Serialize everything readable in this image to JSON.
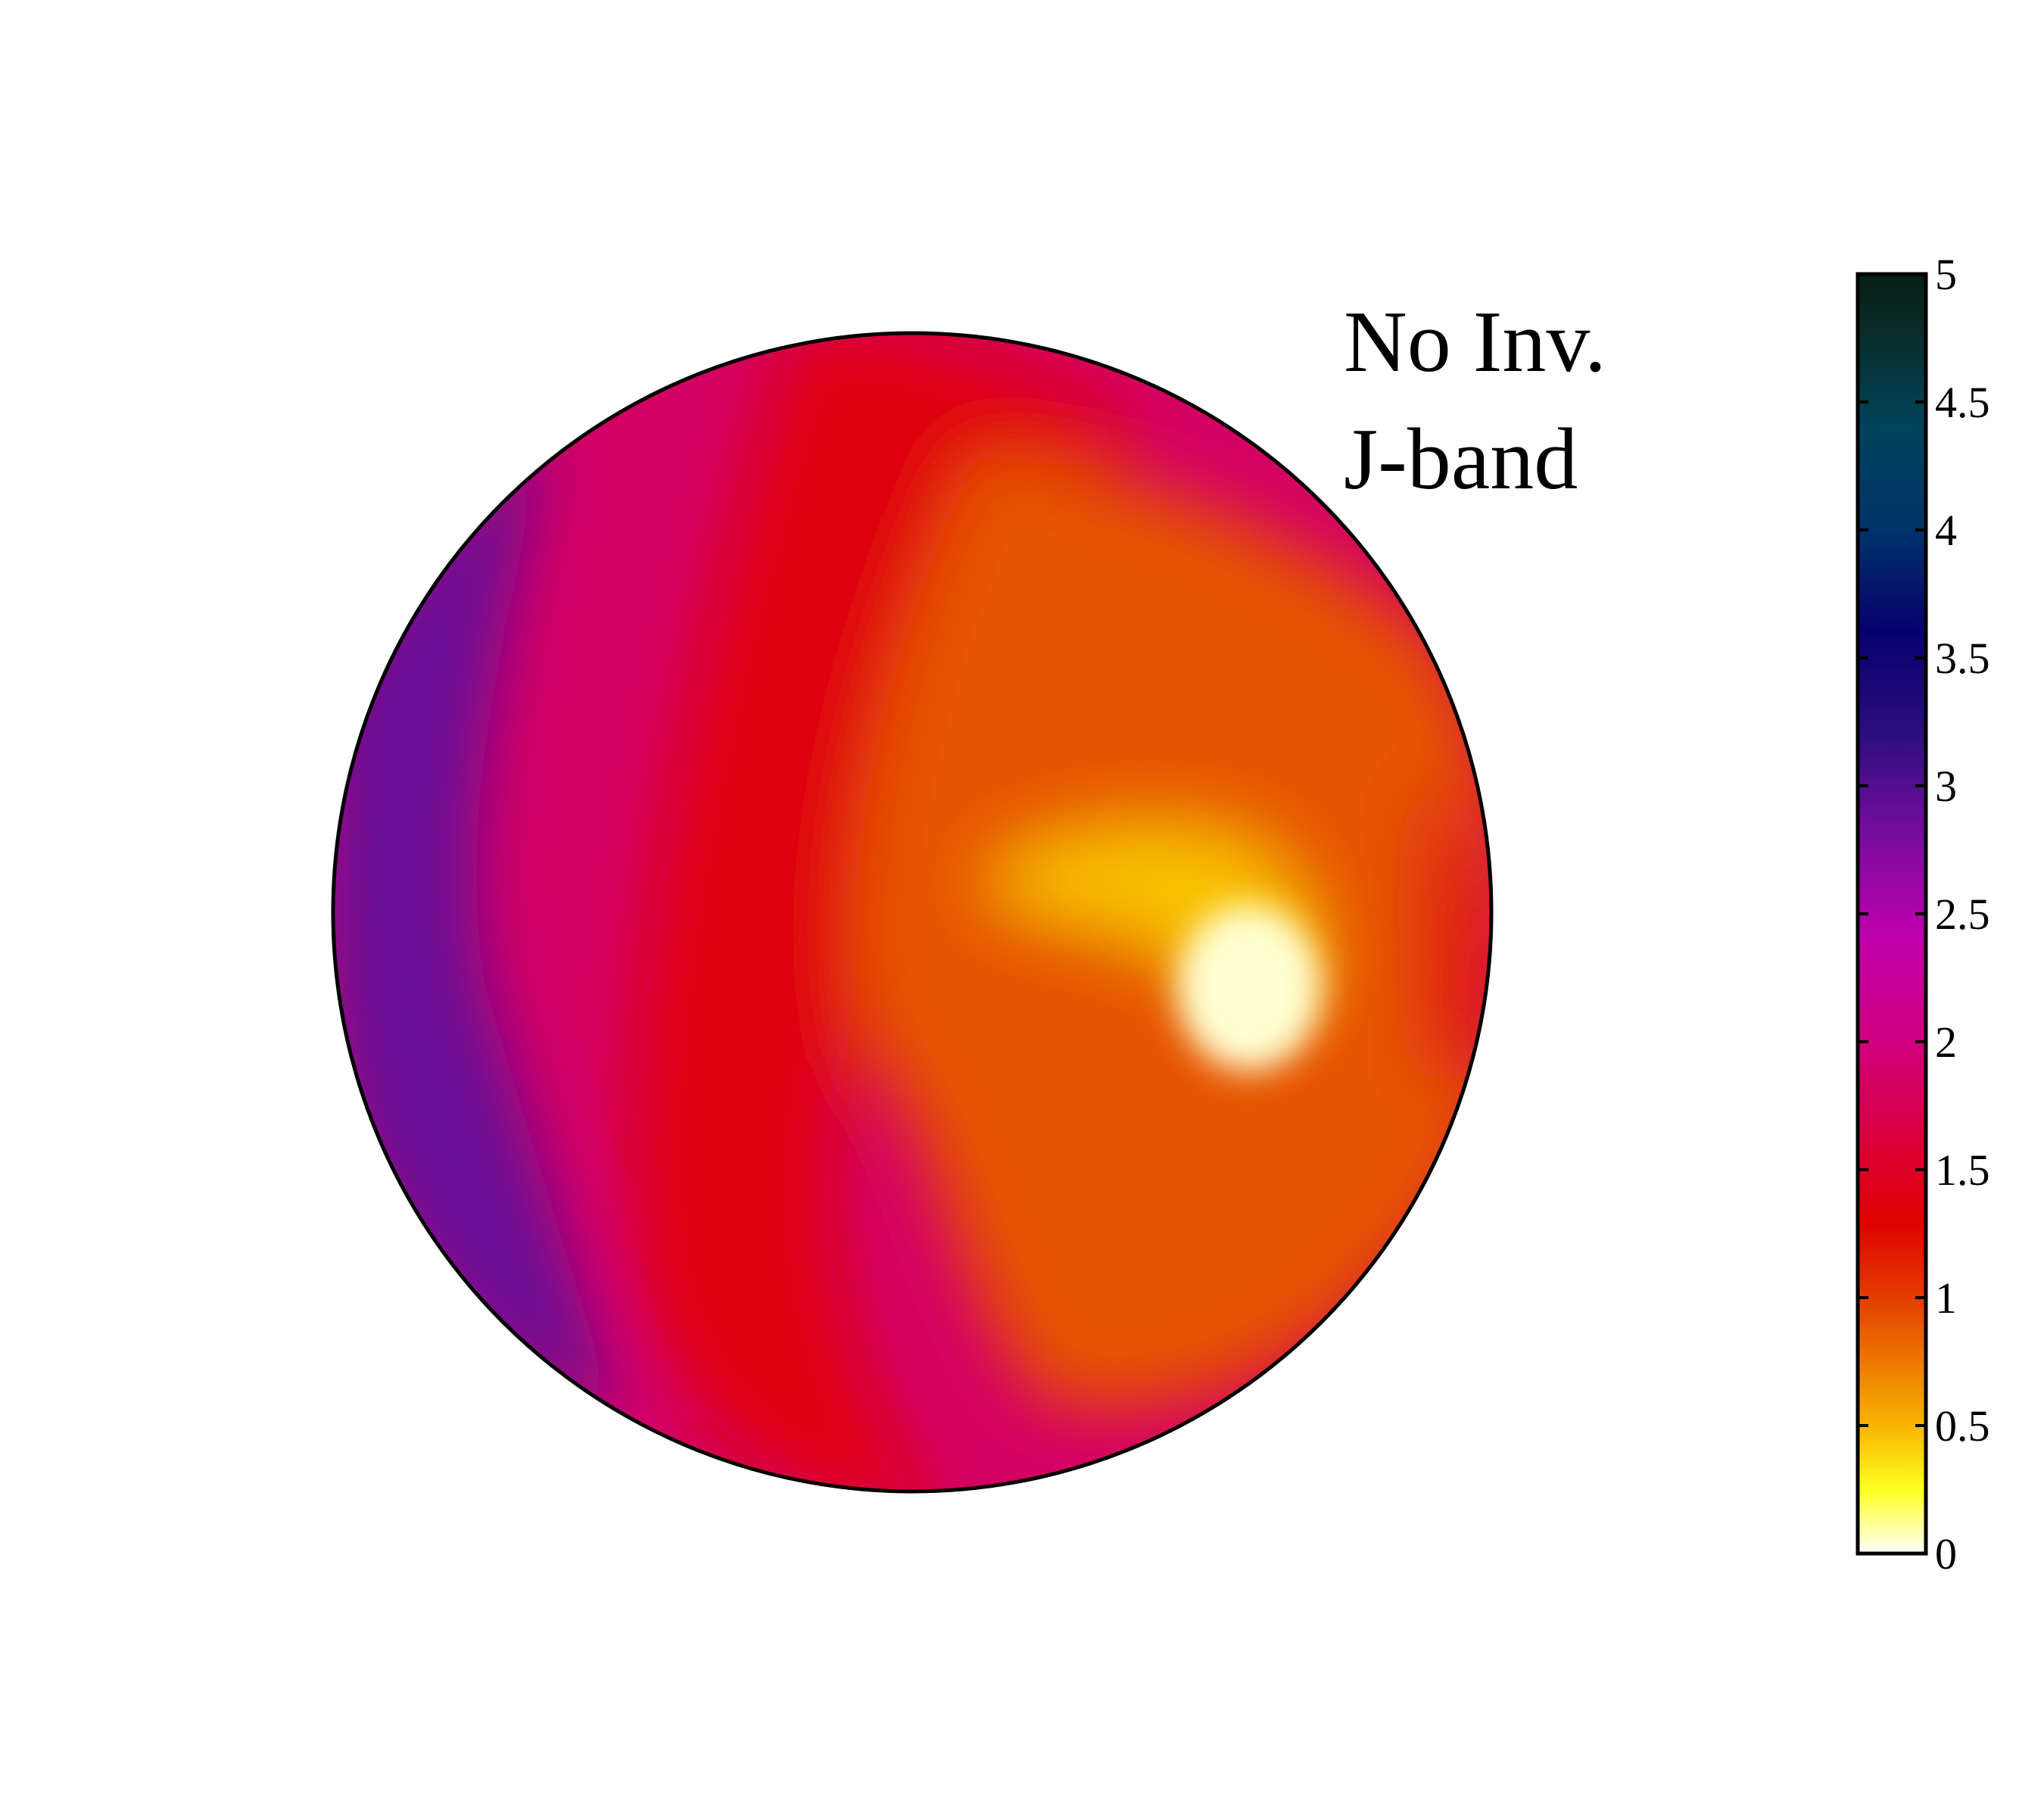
{
  "chart_data": {
    "type": "heatmap",
    "projection": "orthographic disk map",
    "annotation": {
      "line1": "No Inv.",
      "line2": "J-band"
    },
    "colorbar": {
      "min": 0,
      "max": 5,
      "ticks": [
        0,
        0.5,
        1,
        1.5,
        2,
        2.5,
        3,
        3.5,
        4,
        4.5,
        5
      ],
      "tick_labels": [
        "0",
        "0.5",
        "1",
        "1.5",
        "2",
        "2.5",
        "3",
        "3.5",
        "4",
        "4.5",
        "5"
      ],
      "colormap": [
        {
          "value": 0.0,
          "color": "#ffffff"
        },
        {
          "value": 0.25,
          "color": "#ffff20"
        },
        {
          "value": 0.5,
          "color": "#f8b400"
        },
        {
          "value": 1.0,
          "color": "#e23d00"
        },
        {
          "value": 1.3,
          "color": "#e00000"
        },
        {
          "value": 1.7,
          "color": "#d8004a"
        },
        {
          "value": 2.0,
          "color": "#d0007e"
        },
        {
          "value": 2.4,
          "color": "#c000ac"
        },
        {
          "value": 2.8,
          "color": "#7a0ca0"
        },
        {
          "value": 3.2,
          "color": "#2c0f7c"
        },
        {
          "value": 3.6,
          "color": "#06006e"
        },
        {
          "value": 4.0,
          "color": "#00336a"
        },
        {
          "value": 4.4,
          "color": "#00445a"
        },
        {
          "value": 4.8,
          "color": "#0a2a26"
        },
        {
          "value": 5.0,
          "color": "#052016"
        }
      ]
    },
    "surface_features": [
      {
        "name": "background",
        "value": 1.85
      },
      {
        "name": "central-red-band",
        "value": 1.35
      },
      {
        "name": "eastern-orange-region",
        "value": 0.9
      },
      {
        "name": "yellow-bright-spot",
        "value": 0.05
      },
      {
        "name": "yellow-arc",
        "value": 0.45
      },
      {
        "name": "western-purple-limb",
        "value": 2.9
      },
      {
        "name": "eastern-limb-red",
        "value": 1.4
      }
    ]
  }
}
